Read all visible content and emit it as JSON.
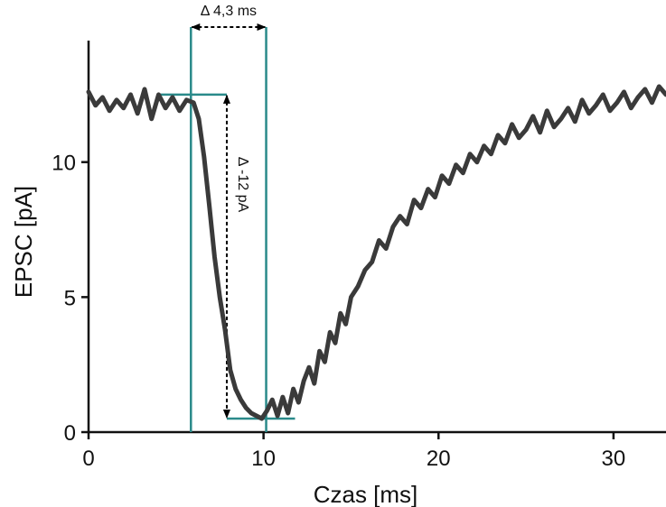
{
  "chart_data": {
    "type": "line",
    "title": "",
    "xlabel": "Czas [ms]",
    "ylabel": "EPSC [pA]",
    "xlim": [
      0,
      33
    ],
    "ylim": [
      0,
      14.5
    ],
    "xticks": [
      0,
      10,
      20,
      30
    ],
    "yticks": [
      0,
      5,
      10
    ],
    "xtick_labels": [
      "0",
      "10",
      "20",
      "30"
    ],
    "ytick_labels": [
      "0",
      "5",
      "10"
    ],
    "grid": false,
    "legend": "none",
    "series": [
      {
        "color": "#3a3a3a",
        "x": [
          0,
          0.4,
          0.8,
          1.2,
          1.6,
          2.0,
          2.4,
          2.8,
          3.2,
          3.6,
          4.0,
          4.4,
          4.8,
          5.2,
          5.6,
          6.0,
          6.3,
          6.6,
          6.9,
          7.2,
          7.5,
          7.8,
          8.1,
          8.4,
          8.7,
          9.0,
          9.3,
          9.6,
          9.9,
          10.2,
          10.5,
          10.8,
          11.1,
          11.4,
          11.7,
          12.0,
          12.3,
          12.6,
          12.9,
          13.2,
          13.5,
          13.8,
          14.1,
          14.4,
          14.7,
          15.0,
          15.4,
          15.8,
          16.2,
          16.6,
          17.0,
          17.4,
          17.8,
          18.2,
          18.6,
          19.0,
          19.4,
          19.8,
          20.2,
          20.6,
          21.0,
          21.4,
          21.8,
          22.2,
          22.6,
          23.0,
          23.4,
          23.8,
          24.2,
          24.6,
          25.0,
          25.4,
          25.8,
          26.2,
          26.6,
          27.0,
          27.4,
          27.8,
          28.2,
          28.6,
          29.0,
          29.4,
          29.8,
          30.2,
          30.6,
          31.0,
          31.4,
          31.8,
          32.2,
          32.6,
          33.0
        ],
        "values": [
          12.6,
          12.1,
          12.4,
          11.9,
          12.3,
          12.0,
          12.5,
          11.8,
          12.7,
          11.6,
          12.5,
          12.0,
          12.4,
          11.9,
          12.3,
          12.2,
          11.6,
          10.2,
          8.4,
          6.5,
          5.0,
          3.8,
          2.3,
          1.6,
          1.2,
          0.9,
          0.7,
          0.6,
          0.5,
          0.8,
          1.2,
          0.6,
          1.3,
          0.7,
          1.6,
          1.1,
          1.9,
          2.4,
          1.8,
          3.0,
          2.6,
          3.7,
          3.3,
          4.4,
          4.0,
          5.0,
          5.4,
          6.0,
          6.3,
          7.1,
          6.8,
          7.6,
          8.0,
          7.7,
          8.6,
          8.3,
          9.0,
          8.7,
          9.5,
          9.2,
          9.9,
          9.6,
          10.3,
          10.0,
          10.6,
          10.3,
          11.0,
          10.7,
          11.4,
          10.9,
          11.2,
          11.7,
          11.1,
          11.9,
          11.3,
          11.6,
          12.0,
          11.5,
          12.3,
          11.8,
          12.1,
          12.5,
          11.9,
          12.2,
          12.6,
          12.0,
          12.4,
          12.7,
          12.2,
          12.8,
          12.5
        ]
      }
    ],
    "annotations": {
      "trace_color": "#2a8a8a",
      "arrow_color": "#000000",
      "baseline_level": 12.5,
      "peak_level": 0.5,
      "baseline_hline_x": [
        4.1,
        7.9
      ],
      "peak_hline_x": [
        7.9,
        11.8
      ],
      "vlines_x": [
        5.85,
        10.15
      ],
      "vlines_top_y": 15.0,
      "time_arrow": {
        "x": [
          5.85,
          10.15
        ],
        "y": 15.0,
        "label": "Δ 4,3 ms"
      },
      "amp_arrow": {
        "x": 7.9,
        "y": [
          12.5,
          0.5
        ],
        "label": "Δ -12 pA"
      }
    }
  }
}
